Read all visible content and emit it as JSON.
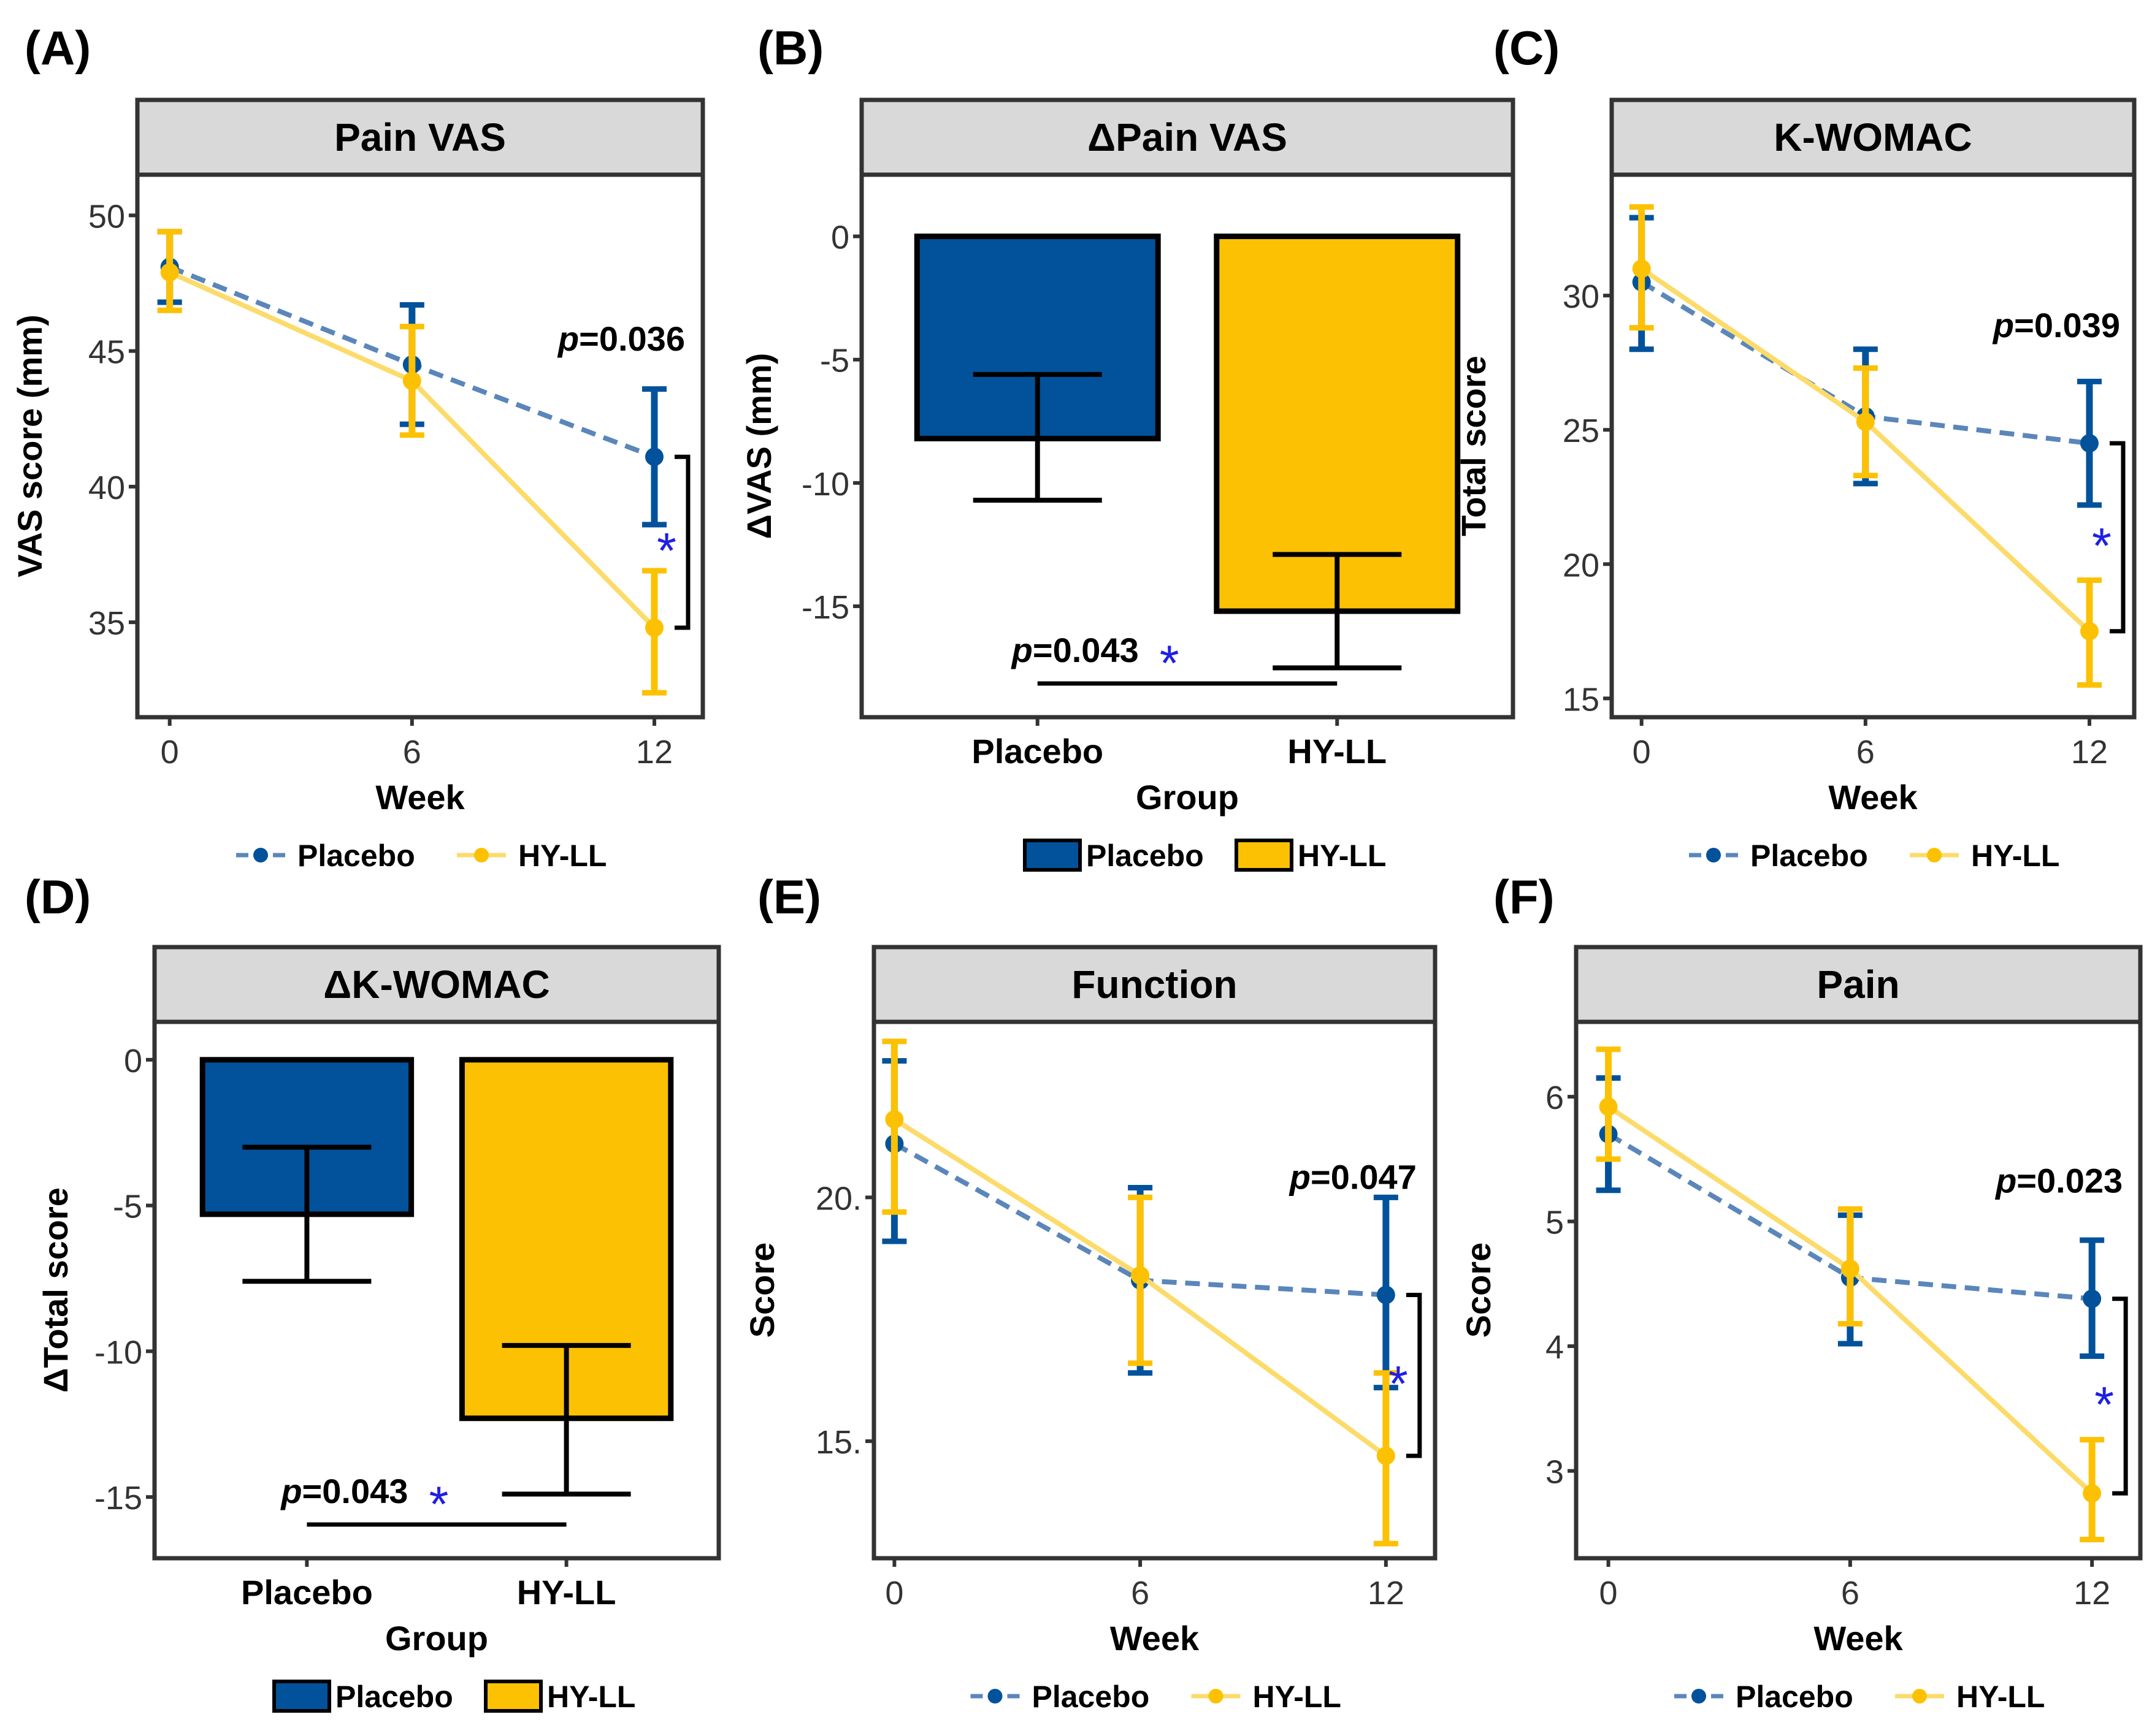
{
  "colors": {
    "placebo": "#01529B",
    "placebo_line": "#5A86BA",
    "hyll": "#FDC103",
    "hyll_line": "#FCDB6A",
    "strip": "#D9D9D9",
    "star": "#1F1FE6"
  },
  "legend": {
    "placebo": "Placebo",
    "hyll": "HY-LL"
  },
  "chart_data": [
    {
      "id": "A",
      "type": "line",
      "panel_label": "(A)",
      "title": "Pain VAS",
      "xlabel": "Week",
      "ylabel": "VAS score (mm)",
      "x": [
        0,
        6,
        12
      ],
      "xlim": [
        -0.8,
        13.2
      ],
      "ylim": [
        31.5,
        51.5
      ],
      "yticks": [
        35,
        40,
        45,
        50
      ],
      "ytick_labels": [
        "35",
        "40",
        "45",
        "50"
      ],
      "series": [
        {
          "name": "Placebo",
          "values": [
            48.1,
            44.5,
            41.1
          ],
          "err_low": [
            46.8,
            42.3,
            38.6
          ],
          "err_high": [
            49.4,
            46.7,
            43.6
          ]
        },
        {
          "name": "HY-LL",
          "values": [
            47.9,
            43.9,
            34.8
          ],
          "err_low": [
            46.5,
            41.9,
            32.4
          ],
          "err_high": [
            49.4,
            45.9,
            36.9
          ]
        }
      ],
      "significance": {
        "p_value": "0.036",
        "star": "*"
      },
      "legend_position": "bottom"
    },
    {
      "id": "B",
      "type": "bar",
      "panel_label": "(B)",
      "title": "ΔPain VAS",
      "xlabel": "Group",
      "ylabel": "ΔVAS (mm)",
      "categories": [
        "Placebo",
        "HY-LL"
      ],
      "ylim": [
        -19.5,
        2.5
      ],
      "yticks": [
        0,
        -5,
        -10,
        -15
      ],
      "ytick_labels": [
        "0",
        "-5",
        "-10",
        "-15"
      ],
      "values": [
        -8.2,
        -15.2
      ],
      "err_low": [
        -10.7,
        -17.5
      ],
      "err_high": [
        -5.6,
        -12.9
      ],
      "significance": {
        "p_value": "0.043",
        "star": "*"
      },
      "legend_position": "bottom"
    },
    {
      "id": "C",
      "type": "line",
      "panel_label": "(C)",
      "title": "K-WOMAC",
      "xlabel": "Week",
      "ylabel": "Total score",
      "x": [
        0,
        6,
        12
      ],
      "xlim": [
        -0.8,
        13.2
      ],
      "ylim": [
        14.3,
        34.5
      ],
      "yticks": [
        15,
        20,
        25,
        30
      ],
      "ytick_labels": [
        "15",
        "20",
        "25",
        "30"
      ],
      "series": [
        {
          "name": "Placebo",
          "values": [
            30.5,
            25.5,
            24.5
          ],
          "err_low": [
            28.0,
            23.0,
            22.2
          ],
          "err_high": [
            32.9,
            28.0,
            26.8
          ]
        },
        {
          "name": "HY-LL",
          "values": [
            31.0,
            25.3,
            17.5
          ],
          "err_low": [
            28.8,
            23.3,
            15.5
          ],
          "err_high": [
            33.3,
            27.3,
            19.4
          ]
        }
      ],
      "significance": {
        "p_value": "0.039",
        "star": "*"
      },
      "legend_position": "bottom"
    },
    {
      "id": "D",
      "type": "bar",
      "panel_label": "(D)",
      "title": "ΔK-WOMAC",
      "xlabel": "Group",
      "ylabel": "ΔTotal score",
      "categories": [
        "Placebo",
        "HY-LL"
      ],
      "ylim": [
        -17.1,
        1.3
      ],
      "yticks": [
        0,
        -5,
        -10,
        -15
      ],
      "ytick_labels": [
        "0",
        "-5",
        "-10",
        "-15"
      ],
      "values": [
        -5.3,
        -12.3
      ],
      "err_low": [
        -7.6,
        -14.9
      ],
      "err_high": [
        -3.0,
        -9.8
      ],
      "significance": {
        "p_value": "0.043",
        "star": "*"
      },
      "legend_position": "bottom"
    },
    {
      "id": "E",
      "type": "line",
      "panel_label": "(E)",
      "title": "Function",
      "xlabel": "Week",
      "ylabel": "Score",
      "x": [
        0,
        6,
        12
      ],
      "xlim": [
        -0.5,
        13.2
      ],
      "ylim": [
        12.6,
        23.6
      ],
      "yticks": [
        15,
        20
      ],
      "ytick_labels": [
        "15.",
        "20."
      ],
      "series": [
        {
          "name": "Placebo",
          "values": [
            21.1,
            18.3,
            18.0
          ],
          "err_low": [
            19.1,
            16.4,
            16.1
          ],
          "err_high": [
            22.8,
            20.2,
            20.0
          ]
        },
        {
          "name": "HY-LL",
          "values": [
            21.6,
            18.4,
            14.7
          ],
          "err_low": [
            19.7,
            16.6,
            12.9
          ],
          "err_high": [
            23.2,
            20.0,
            16.4
          ]
        }
      ],
      "significance": {
        "p_value": "0.047",
        "star": "*"
      },
      "legend_position": "bottom"
    },
    {
      "id": "F",
      "type": "line",
      "panel_label": "(F)",
      "title": "Pain",
      "xlabel": "Week",
      "ylabel": "Score",
      "x": [
        0,
        6,
        12
      ],
      "xlim": [
        -0.8,
        13.2
      ],
      "ylim": [
        2.3,
        6.6
      ],
      "yticks": [
        3,
        4,
        5,
        6
      ],
      "ytick_labels": [
        "3",
        "4",
        "5",
        "6"
      ],
      "series": [
        {
          "name": "Placebo",
          "values": [
            5.7,
            4.55,
            4.38
          ],
          "err_low": [
            5.25,
            4.02,
            3.92
          ],
          "err_high": [
            6.15,
            5.05,
            4.85
          ]
        },
        {
          "name": "HY-LL",
          "values": [
            5.92,
            4.62,
            2.82
          ],
          "err_low": [
            5.5,
            4.18,
            2.45
          ],
          "err_high": [
            6.38,
            5.1,
            3.25
          ]
        }
      ],
      "significance": {
        "p_value": "0.023",
        "star": "*"
      },
      "legend_position": "bottom"
    }
  ]
}
